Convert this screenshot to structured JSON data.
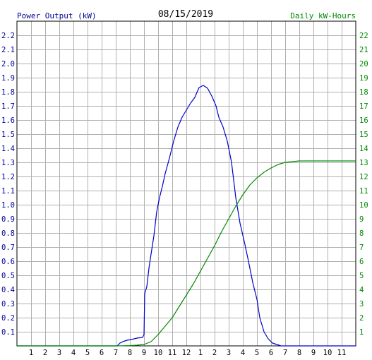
{
  "chart_data": {
    "type": "line",
    "title": "08/15/2019",
    "ylabel_left": "Power Output (kW)",
    "ylabel_right": "Daily kW-Hours",
    "x_ticks": [
      "1",
      "2",
      "3",
      "4",
      "5",
      "6",
      "7",
      "8",
      "9",
      "10",
      "11",
      "12",
      "1",
      "2",
      "3",
      "4",
      "5",
      "6",
      "7",
      "8",
      "9",
      "10",
      "11"
    ],
    "x_range": [
      0,
      24
    ],
    "y_left_range": [
      0,
      2.3
    ],
    "y_left_ticks": [
      "0.1",
      "0.2",
      "0.3",
      "0.4",
      "0.5",
      "0.6",
      "0.7",
      "0.8",
      "0.9",
      "1.0",
      "1.1",
      "1.2",
      "1.3",
      "1.4",
      "1.5",
      "1.6",
      "1.7",
      "1.8",
      "1.9",
      "2.0",
      "2.1",
      "2.2"
    ],
    "y_right_range": [
      0,
      23
    ],
    "y_right_ticks": [
      "1",
      "2",
      "3",
      "4",
      "5",
      "6",
      "7",
      "8",
      "9",
      "10",
      "11",
      "12",
      "13",
      "14",
      "15",
      "16",
      "17",
      "18",
      "19",
      "20",
      "21",
      "22"
    ],
    "grid": true,
    "colors": {
      "power": "#0000cc",
      "energy": "#008800",
      "left_axis_text": "#000099",
      "right_axis_text": "#008800",
      "grid": "#b0b0b0"
    },
    "series": [
      {
        "name": "Power Output (kW)",
        "axis": "left",
        "x": [
          0,
          7.1,
          7.3,
          7.5,
          7.8,
          8.1,
          8.5,
          8.9,
          9.0,
          9.05,
          9.2,
          9.35,
          9.5,
          9.7,
          9.9,
          10.1,
          10.3,
          10.5,
          10.8,
          11.1,
          11.4,
          11.7,
          12.0,
          12.3,
          12.6,
          12.9,
          13.2,
          13.5,
          13.8,
          14.1,
          14.3,
          14.6,
          14.9,
          15.2,
          15.5,
          15.8,
          16.1,
          16.4,
          16.7,
          17.0,
          17.2,
          17.5,
          17.8,
          18.1,
          18.4,
          18.7,
          19.0,
          19.3,
          19.6,
          19.9,
          20.3,
          21.0,
          24
        ],
        "y": [
          0,
          0,
          0.02,
          0.03,
          0.04,
          0.045,
          0.055,
          0.06,
          0.08,
          0.37,
          0.42,
          0.55,
          0.65,
          0.78,
          0.95,
          1.05,
          1.13,
          1.22,
          1.33,
          1.45,
          1.55,
          1.62,
          1.67,
          1.72,
          1.76,
          1.83,
          1.845,
          1.825,
          1.77,
          1.7,
          1.62,
          1.55,
          1.45,
          1.3,
          1.05,
          0.87,
          0.74,
          0.6,
          0.45,
          0.33,
          0.2,
          0.1,
          0.05,
          0.02,
          0.01,
          0,
          0,
          0,
          0,
          0,
          0,
          0,
          0
        ]
      },
      {
        "name": "Daily kW-Hours",
        "axis": "right",
        "x": [
          0,
          7.0,
          7.5,
          8.0,
          8.5,
          9.0,
          9.5,
          10.0,
          10.5,
          11.0,
          11.5,
          12.0,
          12.5,
          13.0,
          13.5,
          14.0,
          14.5,
          15.0,
          15.5,
          16.0,
          16.5,
          17.0,
          17.5,
          18.0,
          18.5,
          19.0,
          19.5,
          20.0,
          24
        ],
        "y": [
          0,
          0,
          0.01,
          0.02,
          0.05,
          0.1,
          0.3,
          0.8,
          1.4,
          2.0,
          2.8,
          3.6,
          4.4,
          5.3,
          6.2,
          7.1,
          8.1,
          9.0,
          9.9,
          10.7,
          11.4,
          11.9,
          12.3,
          12.6,
          12.85,
          13.0,
          13.05,
          13.1,
          13.1
        ]
      }
    ]
  }
}
